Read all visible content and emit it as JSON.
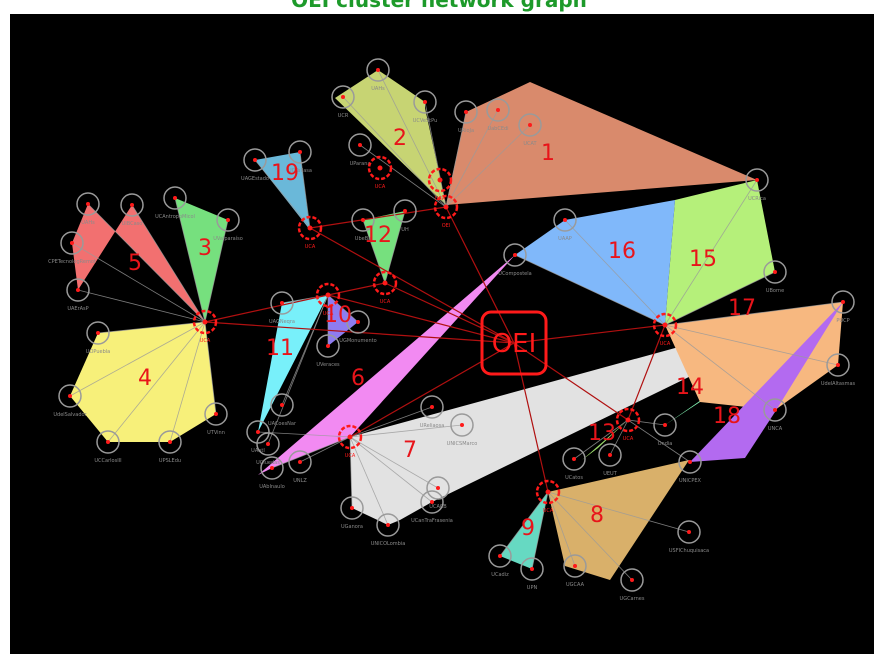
{
  "header": {
    "text": "OEI cluster network graph"
  },
  "center": {
    "label": "OEI"
  },
  "colors": {
    "background": "#000000",
    "header_text": "#1d9a2a",
    "hub": "#ff1a1a",
    "edge_red": "#b01010",
    "edge_grey": "#9a9a9a",
    "node_ring": "#9a9a9a",
    "node_text": "#8a8a8a"
  },
  "clusters": [
    {
      "id": "1",
      "color": "#d98a6c"
    },
    {
      "id": "2",
      "color": "#c7d473"
    },
    {
      "id": "3",
      "color": "#76e07e"
    },
    {
      "id": "4",
      "color": "#f7f07a"
    },
    {
      "id": "5",
      "color": "#f27070"
    },
    {
      "id": "6",
      "color": "#f28af2"
    },
    {
      "id": "7",
      "color": "#e2e2e2"
    },
    {
      "id": "8",
      "color": "#d9b06a"
    },
    {
      "id": "9",
      "color": "#66d9c2"
    },
    {
      "id": "10",
      "color": "#8e7cf0"
    },
    {
      "id": "11",
      "color": "#78f0fa"
    },
    {
      "id": "12",
      "color": "#76e07e"
    },
    {
      "id": "13",
      "color": "#9ad96a"
    },
    {
      "id": "14",
      "color": "#80f0b0"
    },
    {
      "id": "15",
      "color": "#b5f07a"
    },
    {
      "id": "16",
      "color": "#80b8fa"
    },
    {
      "id": "17",
      "color": "#f7b880"
    },
    {
      "id": "18",
      "color": "#b36af0"
    },
    {
      "id": "19",
      "color": "#6ab8d9"
    }
  ],
  "hubs": [
    {
      "label": "OEI"
    },
    {
      "label": "UCA"
    },
    {
      "label": "UCA"
    },
    {
      "label": "UCA"
    },
    {
      "label": "UCA"
    },
    {
      "label": "UCA"
    },
    {
      "label": "UCA"
    },
    {
      "label": "UCA"
    },
    {
      "label": "UCA"
    },
    {
      "label": "UCA"
    },
    {
      "label": "UCA"
    }
  ],
  "nodes": [
    {
      "label": "UabCEdi"
    },
    {
      "label": "URioJa"
    },
    {
      "label": "UCAT"
    },
    {
      "label": "UAHs"
    },
    {
      "label": "UCR"
    },
    {
      "label": "UCVeStPu"
    },
    {
      "label": "UParana"
    },
    {
      "label": "UAGEstado"
    },
    {
      "label": "UCTallasa"
    },
    {
      "label": "UCAntropoMicol"
    },
    {
      "label": "UValparaíso"
    },
    {
      "label": "UAHs"
    },
    {
      "label": "UIBCaso"
    },
    {
      "label": "CPETecnologRemot"
    },
    {
      "label": "UAErAsP"
    },
    {
      "label": "UbeBa"
    },
    {
      "label": "UH"
    },
    {
      "label": "UAGNeqra"
    },
    {
      "label": "UGMonumento"
    },
    {
      "label": "UVeraces"
    },
    {
      "label": "UACoesNar"
    },
    {
      "label": "UCIuedas"
    },
    {
      "label": "UCompostela"
    },
    {
      "label": "UAAP"
    },
    {
      "label": "UBorne"
    },
    {
      "label": "PUCP"
    },
    {
      "label": "UdelAltasmas"
    },
    {
      "label": "UNCA"
    },
    {
      "label": "UCRica"
    },
    {
      "label": "UOPuebla"
    },
    {
      "label": "UdelSalvador"
    },
    {
      "label": "UCCarlosIII"
    },
    {
      "label": "UPSLEdu"
    },
    {
      "label": "UTVinn"
    },
    {
      "label": "UAntI"
    },
    {
      "label": "UAbInaulo"
    },
    {
      "label": "UNLZ"
    },
    {
      "label": "UReliaosa"
    },
    {
      "label": "UNICSMarco"
    },
    {
      "label": "UCACB"
    },
    {
      "label": "UGanora"
    },
    {
      "label": "UNICOLombia"
    },
    {
      "label": "UCanTraFrasenia"
    },
    {
      "label": "UCatos"
    },
    {
      "label": "UEUT"
    },
    {
      "label": "Ondia"
    },
    {
      "label": "UNICPEX"
    },
    {
      "label": "UCadiz"
    },
    {
      "label": "UPN"
    },
    {
      "label": "UGCAA"
    },
    {
      "label": "UGCarnes"
    },
    {
      "label": "USFIChuquisaca"
    }
  ]
}
